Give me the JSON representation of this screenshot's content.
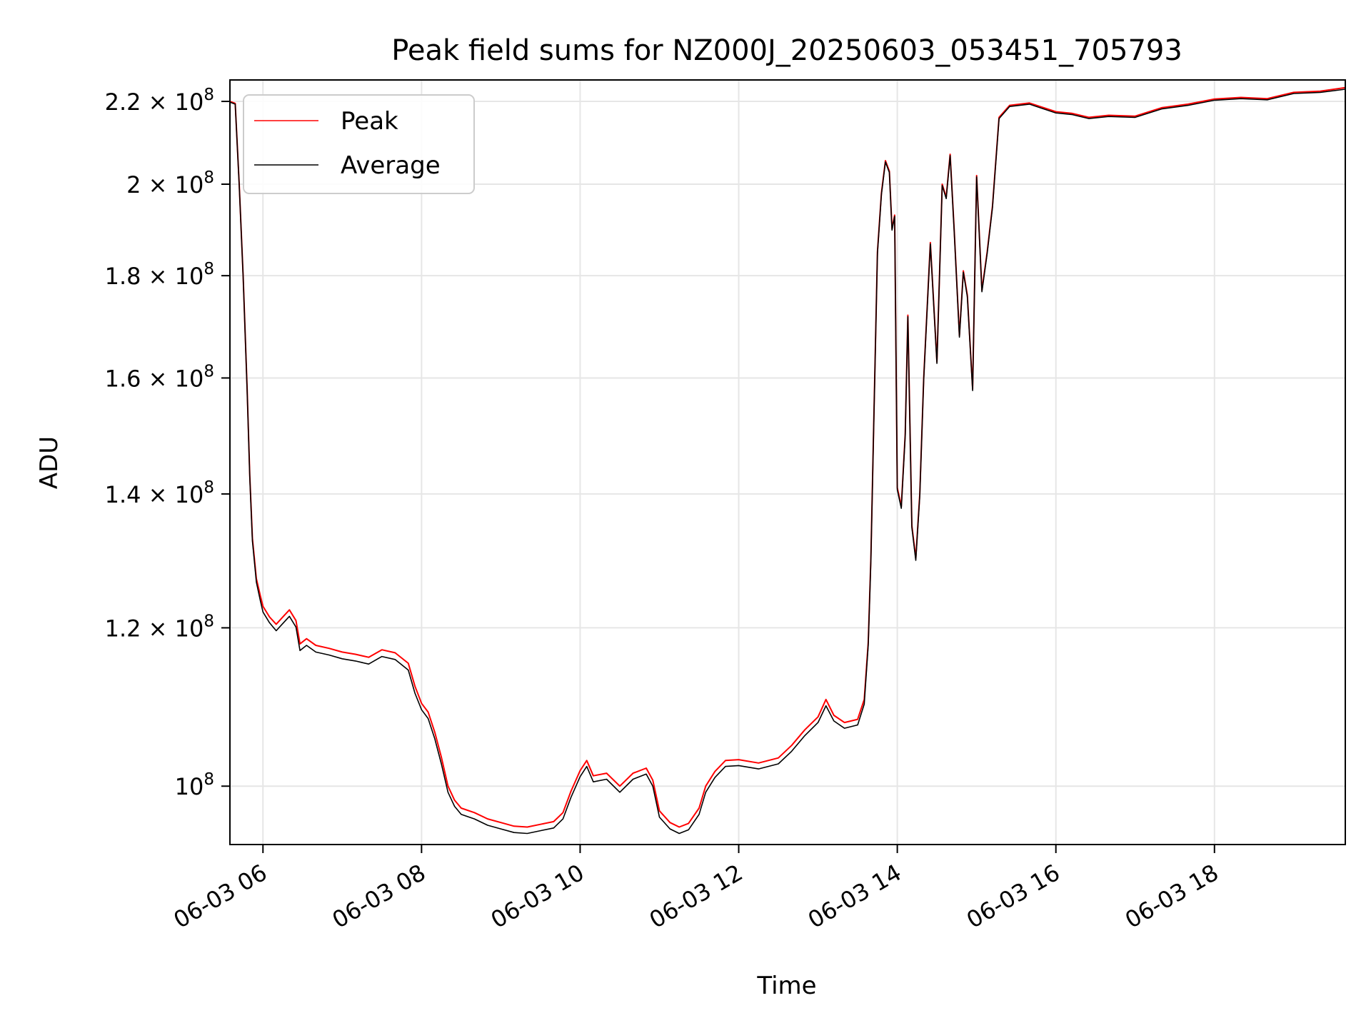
{
  "chart_data": {
    "type": "line",
    "title": "Peak field sums for NZ000J_20250603_053451_705793",
    "xlabel": "Time",
    "ylabel": "ADU",
    "yscale": "log",
    "xlim": [
      "06-03 05:35",
      "06-03 19:39"
    ],
    "ylim": [
      93500000,
      225500000
    ],
    "grid": true,
    "legend_position": "top-left",
    "x_ticks": [
      {
        "x": "06-03 06:00",
        "label": "06-03 06"
      },
      {
        "x": "06-03 08:00",
        "label": "06-03 08"
      },
      {
        "x": "06-03 10:00",
        "label": "06-03 10"
      },
      {
        "x": "06-03 12:00",
        "label": "06-03 12"
      },
      {
        "x": "06-03 14:00",
        "label": "06-03 14"
      },
      {
        "x": "06-03 16:00",
        "label": "06-03 16"
      },
      {
        "x": "06-03 18:00",
        "label": "06-03 18"
      }
    ],
    "y_ticks": [
      {
        "value": 100000000,
        "mantissa": "",
        "exponent": "8"
      },
      {
        "value": 120000000,
        "mantissa": "1.2",
        "exponent": "8"
      },
      {
        "value": 140000000,
        "mantissa": "1.4",
        "exponent": "8"
      },
      {
        "value": 160000000,
        "mantissa": "1.6",
        "exponent": "8"
      },
      {
        "value": 180000000,
        "mantissa": "1.8",
        "exponent": "8"
      },
      {
        "value": 200000000,
        "mantissa": "2",
        "exponent": "8"
      },
      {
        "value": 220000000,
        "mantissa": "2.2",
        "exponent": "8"
      }
    ],
    "series": [
      {
        "name": "Peak",
        "color": "#ff0000",
        "points": [
          [
            "06-03 05:35",
            220000000
          ],
          [
            "06-03 05:39",
            219500000
          ],
          [
            "06-03 05:42",
            200000000
          ],
          [
            "06-03 05:45",
            180000000
          ],
          [
            "06-03 05:48",
            158000000
          ],
          [
            "06-03 05:50",
            143000000
          ],
          [
            "06-03 05:52",
            133000000
          ],
          [
            "06-03 05:55",
            127000000
          ],
          [
            "06-03 05:58",
            124500000
          ],
          [
            "06-03 06:00",
            123000000
          ],
          [
            "06-03 06:05",
            121500000
          ],
          [
            "06-03 06:10",
            120500000
          ],
          [
            "06-03 06:15",
            121500000
          ],
          [
            "06-03 06:20",
            122500000
          ],
          [
            "06-03 06:25",
            121000000
          ],
          [
            "06-03 06:28",
            117800000
          ],
          [
            "06-03 06:33",
            118500000
          ],
          [
            "06-03 06:40",
            117600000
          ],
          [
            "06-03 06:50",
            117200000
          ],
          [
            "06-03 07:00",
            116700000
          ],
          [
            "06-03 07:10",
            116400000
          ],
          [
            "06-03 07:20",
            116000000
          ],
          [
            "06-03 07:30",
            117000000
          ],
          [
            "06-03 07:40",
            116600000
          ],
          [
            "06-03 07:50",
            115200000
          ],
          [
            "06-03 07:55",
            112200000
          ],
          [
            "06-03 08:00",
            110000000
          ],
          [
            "06-03 08:05",
            108900000
          ],
          [
            "06-03 08:10",
            106400000
          ],
          [
            "06-03 08:15",
            103400000
          ],
          [
            "06-03 08:20",
            100000000
          ],
          [
            "06-03 08:25",
            98400000
          ],
          [
            "06-03 08:30",
            97500000
          ],
          [
            "06-03 08:40",
            97000000
          ],
          [
            "06-03 08:50",
            96300000
          ],
          [
            "06-03 09:00",
            95900000
          ],
          [
            "06-03 09:10",
            95500000
          ],
          [
            "06-03 09:20",
            95400000
          ],
          [
            "06-03 09:30",
            95700000
          ],
          [
            "06-03 09:40",
            96000000
          ],
          [
            "06-03 09:47",
            97000000
          ],
          [
            "06-03 09:53",
            99400000
          ],
          [
            "06-03 10:00",
            101800000
          ],
          [
            "06-03 10:05",
            103000000
          ],
          [
            "06-03 10:10",
            101200000
          ],
          [
            "06-03 10:20",
            101500000
          ],
          [
            "06-03 10:30",
            100000000
          ],
          [
            "06-03 10:40",
            101500000
          ],
          [
            "06-03 10:50",
            102100000
          ],
          [
            "06-03 10:55",
            100700000
          ],
          [
            "06-03 11:00",
            97200000
          ],
          [
            "06-03 11:08",
            95900000
          ],
          [
            "06-03 11:15",
            95400000
          ],
          [
            "06-03 11:22",
            95800000
          ],
          [
            "06-03 11:30",
            97500000
          ],
          [
            "06-03 11:35",
            100000000
          ],
          [
            "06-03 11:42",
            101700000
          ],
          [
            "06-03 11:50",
            103000000
          ],
          [
            "06-03 12:00",
            103100000
          ],
          [
            "06-03 12:15",
            102700000
          ],
          [
            "06-03 12:30",
            103300000
          ],
          [
            "06-03 12:40",
            104800000
          ],
          [
            "06-03 12:50",
            106700000
          ],
          [
            "06-03 13:00",
            108300000
          ],
          [
            "06-03 13:06",
            110500000
          ],
          [
            "06-03 13:12",
            108500000
          ],
          [
            "06-03 13:20",
            107600000
          ],
          [
            "06-03 13:30",
            108000000
          ],
          [
            "06-03 13:35",
            110500000
          ],
          [
            "06-03 13:38",
            118000000
          ],
          [
            "06-03 13:40",
            130000000
          ],
          [
            "06-03 13:42",
            150000000
          ],
          [
            "06-03 13:45",
            185000000
          ],
          [
            "06-03 13:48",
            198000000
          ],
          [
            "06-03 13:51",
            205500000
          ],
          [
            "06-03 13:54",
            203000000
          ],
          [
            "06-03 13:56",
            190000000
          ],
          [
            "06-03 13:58",
            193000000
          ],
          [
            "06-03 14:00",
            141000000
          ],
          [
            "06-03 14:03",
            138000000
          ],
          [
            "06-03 14:06",
            150000000
          ],
          [
            "06-03 14:08",
            172000000
          ],
          [
            "06-03 14:11",
            135000000
          ],
          [
            "06-03 14:14",
            130000000
          ],
          [
            "06-03 14:17",
            140000000
          ],
          [
            "06-03 14:20",
            160000000
          ],
          [
            "06-03 14:25",
            187000000
          ],
          [
            "06-03 14:30",
            163000000
          ],
          [
            "06-03 14:34",
            200000000
          ],
          [
            "06-03 14:37",
            197000000
          ],
          [
            "06-03 14:40",
            207000000
          ],
          [
            "06-03 14:43",
            190000000
          ],
          [
            "06-03 14:47",
            168000000
          ],
          [
            "06-03 14:50",
            181000000
          ],
          [
            "06-03 14:53",
            176000000
          ],
          [
            "06-03 14:57",
            158000000
          ],
          [
            "06-03 15:00",
            202000000
          ],
          [
            "06-03 15:04",
            177000000
          ],
          [
            "06-03 15:08",
            185000000
          ],
          [
            "06-03 15:12",
            195000000
          ],
          [
            "06-03 15:17",
            216000000
          ],
          [
            "06-03 15:25",
            219000000
          ],
          [
            "06-03 15:40",
            219600000
          ],
          [
            "06-03 15:48",
            218700000
          ],
          [
            "06-03 16:00",
            217400000
          ],
          [
            "06-03 16:12",
            217000000
          ],
          [
            "06-03 16:25",
            216000000
          ],
          [
            "06-03 16:40",
            216500000
          ],
          [
            "06-03 17:00",
            216300000
          ],
          [
            "06-03 17:20",
            218400000
          ],
          [
            "06-03 17:40",
            219300000
          ],
          [
            "06-03 18:00",
            220600000
          ],
          [
            "06-03 18:20",
            221000000
          ],
          [
            "06-03 18:40",
            220700000
          ],
          [
            "06-03 19:00",
            222300000
          ],
          [
            "06-03 19:20",
            222600000
          ],
          [
            "06-03 19:39",
            223500000
          ]
        ]
      },
      {
        "name": "Average",
        "color": "#000000",
        "points": [
          [
            "06-03 05:35",
            219800000
          ],
          [
            "06-03 05:39",
            219300000
          ],
          [
            "06-03 05:42",
            199800000
          ],
          [
            "06-03 05:45",
            179800000
          ],
          [
            "06-03 05:48",
            157700000
          ],
          [
            "06-03 05:50",
            142700000
          ],
          [
            "06-03 05:52",
            132600000
          ],
          [
            "06-03 05:55",
            126500000
          ],
          [
            "06-03 05:58",
            123800000
          ],
          [
            "06-03 06:00",
            122200000
          ],
          [
            "06-03 06:05",
            120700000
          ],
          [
            "06-03 06:10",
            119600000
          ],
          [
            "06-03 06:15",
            120600000
          ],
          [
            "06-03 06:20",
            121600000
          ],
          [
            "06-03 06:25",
            120100000
          ],
          [
            "06-03 06:28",
            116900000
          ],
          [
            "06-03 06:33",
            117600000
          ],
          [
            "06-03 06:40",
            116700000
          ],
          [
            "06-03 06:50",
            116300000
          ],
          [
            "06-03 07:00",
            115800000
          ],
          [
            "06-03 07:10",
            115500000
          ],
          [
            "06-03 07:20",
            115100000
          ],
          [
            "06-03 07:30",
            116100000
          ],
          [
            "06-03 07:40",
            115700000
          ],
          [
            "06-03 07:50",
            114300000
          ],
          [
            "06-03 07:55",
            111300000
          ],
          [
            "06-03 08:00",
            109200000
          ],
          [
            "06-03 08:05",
            108100000
          ],
          [
            "06-03 08:10",
            105600000
          ],
          [
            "06-03 08:15",
            102600000
          ],
          [
            "06-03 08:20",
            99300000
          ],
          [
            "06-03 08:25",
            97700000
          ],
          [
            "06-03 08:30",
            96800000
          ],
          [
            "06-03 08:40",
            96300000
          ],
          [
            "06-03 08:50",
            95600000
          ],
          [
            "06-03 09:00",
            95200000
          ],
          [
            "06-03 09:10",
            94800000
          ],
          [
            "06-03 09:20",
            94700000
          ],
          [
            "06-03 09:30",
            95000000
          ],
          [
            "06-03 09:40",
            95300000
          ],
          [
            "06-03 09:47",
            96300000
          ],
          [
            "06-03 09:53",
            98700000
          ],
          [
            "06-03 10:00",
            101100000
          ],
          [
            "06-03 10:05",
            102300000
          ],
          [
            "06-03 10:10",
            100500000
          ],
          [
            "06-03 10:20",
            100800000
          ],
          [
            "06-03 10:30",
            99300000
          ],
          [
            "06-03 10:40",
            100800000
          ],
          [
            "06-03 10:50",
            101400000
          ],
          [
            "06-03 10:55",
            100000000
          ],
          [
            "06-03 11:00",
            96500000
          ],
          [
            "06-03 11:08",
            95200000
          ],
          [
            "06-03 11:15",
            94700000
          ],
          [
            "06-03 11:22",
            95100000
          ],
          [
            "06-03 11:30",
            96800000
          ],
          [
            "06-03 11:35",
            99300000
          ],
          [
            "06-03 11:42",
            101000000
          ],
          [
            "06-03 11:50",
            102300000
          ],
          [
            "06-03 12:00",
            102400000
          ],
          [
            "06-03 12:15",
            102000000
          ],
          [
            "06-03 12:30",
            102600000
          ],
          [
            "06-03 12:40",
            104100000
          ],
          [
            "06-03 12:50",
            106000000
          ],
          [
            "06-03 13:00",
            107600000
          ],
          [
            "06-03 13:06",
            109700000
          ],
          [
            "06-03 13:12",
            107800000
          ],
          [
            "06-03 13:20",
            106900000
          ],
          [
            "06-03 13:30",
            107300000
          ],
          [
            "06-03 13:35",
            109900000
          ],
          [
            "06-03 13:38",
            117600000
          ],
          [
            "06-03 13:40",
            129600000
          ],
          [
            "06-03 13:42",
            149700000
          ],
          [
            "06-03 13:45",
            184700000
          ],
          [
            "06-03 13:48",
            197700000
          ],
          [
            "06-03 13:51",
            205200000
          ],
          [
            "06-03 13:54",
            202700000
          ],
          [
            "06-03 13:56",
            189700000
          ],
          [
            "06-03 13:58",
            192700000
          ],
          [
            "06-03 14:00",
            140700000
          ],
          [
            "06-03 14:03",
            137700000
          ],
          [
            "06-03 14:06",
            149700000
          ],
          [
            "06-03 14:08",
            171700000
          ],
          [
            "06-03 14:11",
            134700000
          ],
          [
            "06-03 14:14",
            129700000
          ],
          [
            "06-03 14:17",
            139700000
          ],
          [
            "06-03 14:20",
            159700000
          ],
          [
            "06-03 14:25",
            186700000
          ],
          [
            "06-03 14:30",
            162700000
          ],
          [
            "06-03 14:34",
            199700000
          ],
          [
            "06-03 14:37",
            196700000
          ],
          [
            "06-03 14:40",
            206700000
          ],
          [
            "06-03 14:43",
            189700000
          ],
          [
            "06-03 14:47",
            167700000
          ],
          [
            "06-03 14:50",
            180700000
          ],
          [
            "06-03 14:53",
            175700000
          ],
          [
            "06-03 14:57",
            157700000
          ],
          [
            "06-03 15:00",
            201700000
          ],
          [
            "06-03 15:04",
            176700000
          ],
          [
            "06-03 15:08",
            184700000
          ],
          [
            "06-03 15:12",
            194700000
          ],
          [
            "06-03 15:17",
            215700000
          ],
          [
            "06-03 15:25",
            218700000
          ],
          [
            "06-03 15:40",
            219300000
          ],
          [
            "06-03 15:48",
            218400000
          ],
          [
            "06-03 16:00",
            217100000
          ],
          [
            "06-03 16:12",
            216700000
          ],
          [
            "06-03 16:25",
            215700000
          ],
          [
            "06-03 16:40",
            216200000
          ],
          [
            "06-03 17:00",
            216000000
          ],
          [
            "06-03 17:20",
            218100000
          ],
          [
            "06-03 17:40",
            219000000
          ],
          [
            "06-03 18:00",
            220300000
          ],
          [
            "06-03 18:20",
            220700000
          ],
          [
            "06-03 18:40",
            220400000
          ],
          [
            "06-03 19:00",
            222000000
          ],
          [
            "06-03 19:20",
            222300000
          ],
          [
            "06-03 19:39",
            223100000
          ]
        ]
      }
    ]
  }
}
